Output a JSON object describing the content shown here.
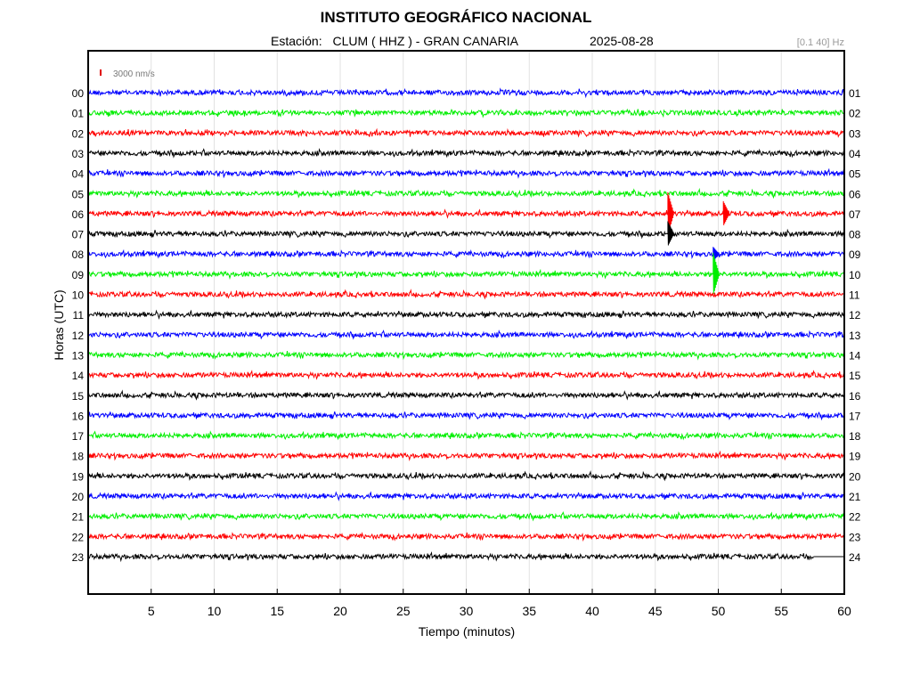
{
  "header": {
    "title": "INSTITUTO GEOGRÁFICO NACIONAL",
    "station_label": "Estación:",
    "station": "CLUM ( HHZ ) - GRAN CANARIA",
    "date": "2025-08-28",
    "filter": "[0.1 40] Hz"
  },
  "chart_data": {
    "type": "line",
    "title": "INSTITUTO GEOGRÁFICO NACIONAL",
    "xlabel": "Tiempo (minutos)",
    "ylabel": "Horas (UTC)",
    "xlim": [
      0,
      60
    ],
    "x_ticks": [
      "5",
      "10",
      "15",
      "20",
      "25",
      "30",
      "35",
      "40",
      "45",
      "50",
      "55",
      "60"
    ],
    "y_ticks_left": [
      "00",
      "01",
      "02",
      "03",
      "04",
      "05",
      "06",
      "07",
      "08",
      "09",
      "10",
      "11",
      "12",
      "13",
      "14",
      "15",
      "16",
      "17",
      "18",
      "19",
      "20",
      "21",
      "22",
      "23"
    ],
    "y_ticks_right": [
      "01",
      "02",
      "03",
      "04",
      "05",
      "06",
      "07",
      "08",
      "09",
      "10",
      "11",
      "12",
      "13",
      "14",
      "15",
      "16",
      "17",
      "18",
      "19",
      "20",
      "21",
      "22",
      "23",
      "24"
    ],
    "grid": "vertical",
    "scale_bar": {
      "label": "3000 nm/s",
      "color": "#e00000"
    },
    "trace_colors": [
      "#0000ff",
      "#00ee00",
      "#ff0000",
      "#000000"
    ],
    "events": [
      {
        "hour": "06",
        "minute": 46.0,
        "amplitude": "large"
      },
      {
        "hour": "06",
        "minute": 50.4,
        "amplitude": "medium"
      },
      {
        "hour": "07",
        "minute": 46.0,
        "amplitude": "medium"
      },
      {
        "hour": "09",
        "minute": 49.6,
        "amplitude": "large"
      },
      {
        "hour": "08",
        "minute": 49.6,
        "amplitude": "small"
      }
    ],
    "data_end_minute": 57.6
  }
}
